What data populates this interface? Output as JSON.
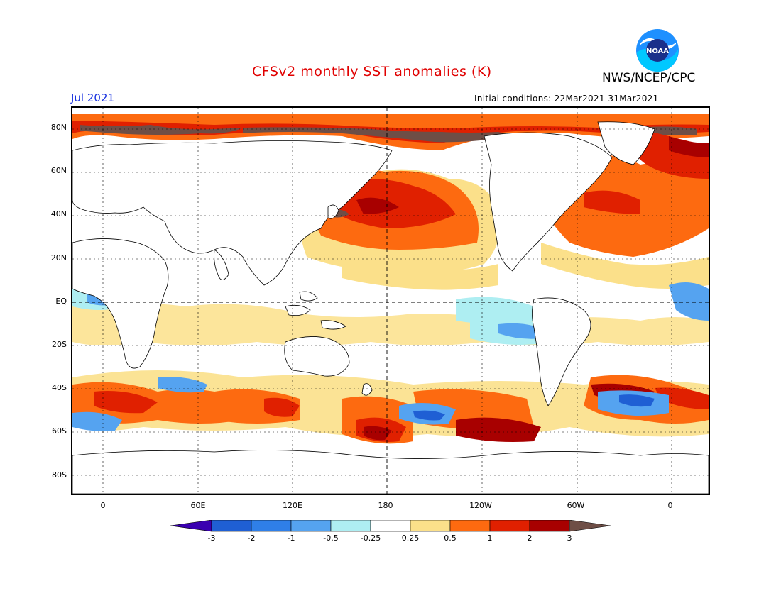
{
  "header": {
    "title": "CFSv2 monthly SST anomalies (K)",
    "agency": "NWS/NCEP/CPC",
    "month": "Jul 2021",
    "initial_conditions": "Initial conditions: 22Mar2021-31Mar2021",
    "logo_text": "NOAA"
  },
  "axes": {
    "lat_labels": [
      "80N",
      "60N",
      "40N",
      "20N",
      "EQ",
      "20S",
      "40S",
      "60S",
      "80S"
    ],
    "lon_labels": [
      "0",
      "60E",
      "120E",
      "180",
      "120W",
      "60W",
      "0"
    ]
  },
  "colorbar": {
    "labels": [
      "-3",
      "-2",
      "-1",
      "-0.5",
      "-0.25",
      "0.25",
      "0.5",
      "1",
      "2",
      "3"
    ],
    "colors": [
      "#3a00b0",
      "#1f5fd4",
      "#2f7fe8",
      "#55a3f0",
      "#aeeef2",
      "#ffffff",
      "#fbe08a",
      "#fd6a10",
      "#e02000",
      "#a80000",
      "#6e4e46"
    ]
  },
  "colors": {
    "title": "#e00000",
    "month": "#1a33e0",
    "warm_light": "#fbe08a",
    "warm": "#fd6a10",
    "hot": "#e02000",
    "very_hot": "#a80000",
    "extreme": "#6e4e46",
    "cool_light": "#aeeef2",
    "cool": "#55a3f0",
    "cold": "#2f7fe8"
  }
}
